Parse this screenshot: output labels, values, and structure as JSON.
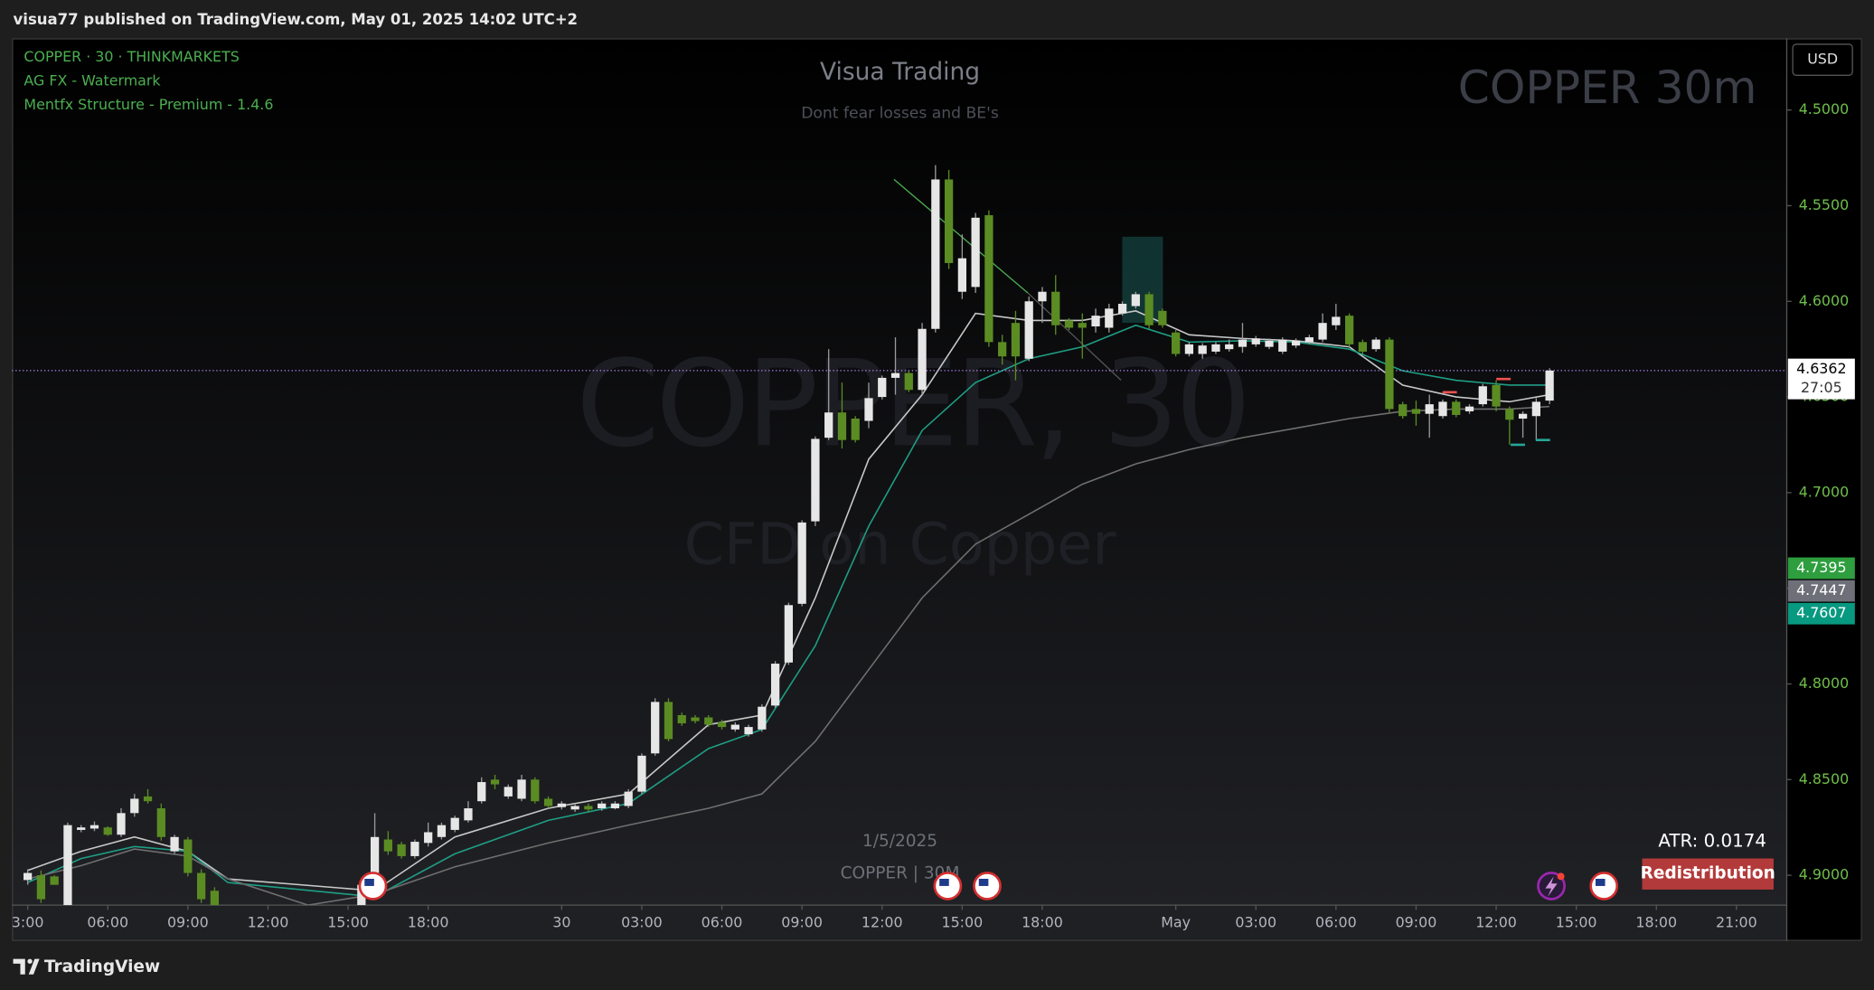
{
  "header": {
    "publish_note": "visua77 published on TradingView.com, May 01, 2025 14:02 UTC+2"
  },
  "chart_data": {
    "type": "candlestick",
    "title": "COPPER · 30 · THINKMARKETS",
    "indicator_labels": [
      "AG FX - Watermark",
      "Mentfx Structure - Premium - 1.4.6"
    ],
    "watermark": {
      "title": "Visua Trading",
      "subtitle": "Dont fear losses and BE's",
      "symbol": "COPPER 30m",
      "background_symbol": "COPPER, 30",
      "background_description": "CFD on Copper",
      "date": "1/5/2025",
      "footer": "COPPER | 30M"
    },
    "x": [
      1,
      2,
      3,
      4,
      5,
      6,
      7,
      8,
      9,
      10,
      11,
      12,
      13,
      14,
      15,
      26,
      27,
      28,
      29,
      30,
      31,
      32,
      33,
      34,
      35,
      36,
      37,
      38,
      39,
      40,
      41,
      42,
      43,
      44,
      45,
      46,
      47,
      48,
      49,
      50,
      51,
      52,
      53,
      54,
      55,
      56,
      57,
      58,
      59,
      60,
      61,
      62,
      63,
      64,
      65,
      66,
      67,
      68,
      69,
      70,
      71,
      72,
      73,
      74,
      75,
      76,
      77,
      78,
      79,
      80,
      81,
      82,
      83,
      84,
      85,
      86,
      87,
      88,
      89,
      90,
      91,
      92,
      93,
      94,
      95,
      96,
      97,
      98,
      99,
      100,
      101,
      102,
      103,
      104,
      105,
      106,
      107,
      108,
      109,
      110,
      111,
      112,
      113,
      114,
      115
    ],
    "open": [
      4.9025,
      4.9,
      4.9006,
      4.9156,
      4.8763,
      4.8756,
      4.875,
      4.8788,
      4.8675,
      4.8588,
      4.865,
      4.8875,
      4.8813,
      4.8988,
      4.9081,
      4.9156,
      4.905,
      4.8813,
      4.8838,
      4.89,
      4.8831,
      4.88,
      4.8763,
      4.8713,
      4.8613,
      4.85,
      4.8588,
      4.86,
      4.85,
      4.86,
      4.8644,
      4.8656,
      4.8638,
      4.865,
      4.865,
      4.8638,
      4.8563,
      4.8363,
      4.8094,
      4.8163,
      4.8175,
      4.8175,
      4.82,
      4.8238,
      4.8263,
      4.8238,
      4.8113,
      4.7888,
      4.7581,
      4.715,
      4.6713,
      4.6581,
      4.6613,
      4.6625,
      4.65,
      4.64,
      4.6375,
      4.6463,
      4.6144,
      4.5363,
      4.595,
      4.5925,
      4.555,
      4.6213,
      4.6113,
      4.63,
      4.6,
      4.595,
      4.61,
      4.6113,
      4.6131,
      4.6138,
      4.6063,
      4.6025,
      4.5963,
      4.605,
      4.6163,
      4.6275,
      4.6275,
      4.6263,
      4.625,
      4.6238,
      4.6225,
      4.6238,
      4.6263,
      4.6231,
      4.6213,
      4.62,
      4.6125,
      4.6075,
      4.6213,
      4.625,
      4.62,
      4.6538,
      4.6563,
      4.6588,
      4.66,
      4.6525,
      4.6575,
      4.6538,
      4.6438,
      4.6563,
      4.6613,
      4.66,
      4.6519
    ],
    "high": [
      4.905,
      4.9144,
      4.905,
      4.9156,
      4.8775,
      4.8769,
      4.8794,
      4.88,
      4.8694,
      4.8625,
      4.8819,
      4.8888,
      4.9006,
      4.9144,
      4.9156,
      4.9156,
      4.9081,
      4.8894,
      4.8913,
      4.8913,
      4.885,
      4.8813,
      4.8775,
      4.8725,
      4.8625,
      4.855,
      4.86,
      4.8613,
      4.8625,
      4.865,
      4.8656,
      4.8669,
      4.8669,
      4.8663,
      4.8656,
      4.865,
      4.8575,
      4.8375,
      4.83,
      4.8219,
      4.8206,
      4.8225,
      4.8238,
      4.825,
      4.8275,
      4.825,
      4.8125,
      4.79,
      4.7594,
      4.7175,
      4.6725,
      4.6769,
      4.6738,
      4.6663,
      4.6513,
      4.6488,
      4.6475,
      4.6488,
      4.6163,
      4.5831,
      4.5988,
      4.5956,
      4.6238,
      4.6331,
      4.6413,
      4.6313,
      4.6113,
      4.6175,
      4.615,
      4.63,
      4.6163,
      4.6163,
      4.6075,
      4.6038,
      4.6144,
      4.6138,
      4.6288,
      4.6288,
      4.63,
      4.6275,
      4.6263,
      4.6269,
      4.6238,
      4.625,
      4.6275,
      4.6244,
      4.6225,
      4.6213,
      4.615,
      4.6238,
      4.6275,
      4.6263,
      4.6581,
      4.6613,
      4.665,
      4.6713,
      4.6613,
      4.6606,
      4.6588,
      4.655,
      4.6575,
      4.675,
      4.6713,
      4.6725,
      4.6538
    ],
    "low": [
      4.8969,
      4.8975,
      4.9,
      4.8725,
      4.8738,
      4.8719,
      4.8744,
      4.865,
      4.8575,
      4.855,
      4.8625,
      4.8788,
      4.88,
      4.8969,
      4.9063,
      4.9031,
      4.8675,
      4.8769,
      4.8825,
      4.8813,
      4.8725,
      4.8725,
      4.8688,
      4.8613,
      4.8488,
      4.8475,
      4.8525,
      4.8475,
      4.8488,
      4.8588,
      4.8613,
      4.8625,
      4.8625,
      4.8613,
      4.8613,
      4.855,
      4.8363,
      4.8075,
      4.8075,
      4.815,
      4.8163,
      4.8163,
      4.8188,
      4.82,
      4.8213,
      4.8106,
      4.7881,
      4.7575,
      4.7144,
      4.6706,
      4.625,
      4.6425,
      4.66,
      4.6425,
      4.6388,
      4.6188,
      4.6363,
      4.6113,
      4.5288,
      4.5313,
      4.565,
      4.5538,
      4.5525,
      4.6175,
      4.605,
      4.5975,
      4.5925,
      4.5863,
      4.6088,
      4.6063,
      4.6038,
      4.6013,
      4.6,
      4.595,
      4.595,
      4.6038,
      4.615,
      4.6213,
      4.6219,
      4.6213,
      4.62,
      4.6113,
      4.6181,
      4.6194,
      4.6188,
      4.6194,
      4.6175,
      4.6063,
      4.6013,
      4.6063,
      4.62,
      4.6188,
      4.6188,
      4.6525,
      4.6519,
      4.6488,
      4.6513,
      4.6513,
      4.6538,
      4.6431,
      4.6413,
      4.655,
      4.6575,
      4.6506,
      4.635
    ],
    "close": [
      4.8988,
      4.9125,
      4.905,
      4.8738,
      4.875,
      4.8738,
      4.8788,
      4.8675,
      4.86,
      4.8613,
      4.88,
      4.88,
      4.8988,
      4.9125,
      4.9156,
      4.905,
      4.88,
      4.8875,
      4.89,
      4.8825,
      4.8775,
      4.8738,
      4.87,
      4.865,
      4.8513,
      4.8525,
      4.8538,
      4.85,
      4.8613,
      4.8638,
      4.8625,
      4.8638,
      4.8656,
      4.8625,
      4.8625,
      4.8563,
      4.8375,
      4.8094,
      4.8288,
      4.8206,
      4.8194,
      4.8213,
      4.8225,
      4.8213,
      4.8225,
      4.8119,
      4.7894,
      4.7588,
      4.7156,
      4.6719,
      4.6581,
      4.6725,
      4.6725,
      4.6506,
      4.64,
      4.6375,
      4.6463,
      4.6144,
      4.5363,
      4.58,
      4.5775,
      4.5563,
      4.6213,
      4.6288,
      4.6288,
      4.6,
      4.595,
      4.6125,
      4.6138,
      4.6138,
      4.6075,
      4.6038,
      4.6013,
      4.5963,
      4.6125,
      4.6125,
      4.6275,
      4.6225,
      4.6231,
      4.6225,
      4.6225,
      4.62,
      4.6194,
      4.6206,
      4.62,
      4.6206,
      4.6188,
      4.6113,
      4.6081,
      4.6225,
      4.6263,
      4.62,
      4.6563,
      4.66,
      4.6588,
      4.6538,
      4.6525,
      4.6594,
      4.655,
      4.6444,
      4.655,
      4.6619,
      4.6588,
      4.6525,
      4.6362
    ],
    "up_color": "#5b8c23",
    "down_color": "#e6e6e6",
    "lines": [
      {
        "color": "#c8c8c8",
        "x": [
          1,
          5,
          9,
          13,
          16,
          27,
          33,
          40,
          46,
          52,
          56,
          60,
          64,
          68,
          72,
          76,
          80,
          84,
          88,
          92,
          96,
          100,
          104,
          108,
          112,
          115
        ],
        "values": [
          4.8975,
          4.8875,
          4.88,
          4.8875,
          4.9019,
          4.9081,
          4.88,
          4.865,
          4.8575,
          4.8213,
          4.8163,
          4.755,
          4.6825,
          4.6488,
          4.6063,
          4.61,
          4.61,
          4.605,
          4.6175,
          4.6194,
          4.6206,
          4.6238,
          4.6438,
          4.65,
          4.6525,
          4.6488
        ]
      },
      {
        "color": "#1e9e85",
        "x": [
          1,
          5,
          9,
          13,
          16,
          27,
          33,
          40,
          46,
          52,
          56,
          60,
          64,
          68,
          72,
          76,
          80,
          84,
          88,
          92,
          96,
          100,
          104,
          108,
          112,
          115
        ],
        "values": [
          4.9038,
          4.8913,
          4.885,
          4.8875,
          4.9038,
          4.9113,
          4.8888,
          4.8713,
          4.8625,
          4.8338,
          4.8238,
          4.78,
          4.7175,
          4.6675,
          4.6425,
          4.63,
          4.6238,
          4.6125,
          4.6213,
          4.6206,
          4.6213,
          4.625,
          4.6363,
          4.6413,
          4.6438,
          4.6438
        ]
      },
      {
        "color": "#6f6f6f",
        "x": [
          1,
          5,
          9,
          13,
          16,
          22,
          27,
          33,
          40,
          46,
          52,
          56,
          60,
          64,
          68,
          72,
          76,
          80,
          84,
          88,
          92,
          96,
          100,
          104,
          108,
          112,
          115
        ],
        "values": [
          4.9019,
          4.895,
          4.8863,
          4.89,
          4.9019,
          4.9156,
          4.91,
          4.8956,
          4.8831,
          4.8738,
          4.865,
          4.8575,
          4.83,
          4.7925,
          4.755,
          4.7269,
          4.7113,
          4.6956,
          4.685,
          4.6775,
          4.6713,
          4.6663,
          4.6613,
          4.6575,
          4.6563,
          4.6563,
          4.655
        ]
      }
    ],
    "xlim": [
      0,
      133
    ],
    "xticks": [
      {
        "value": 1,
        "label": "3:00"
      },
      {
        "value": 7,
        "label": "06:00"
      },
      {
        "value": 13,
        "label": "09:00"
      },
      {
        "value": 19,
        "label": "12:00"
      },
      {
        "value": 25,
        "label": "15:00"
      },
      {
        "value": 31,
        "label": "18:00"
      },
      {
        "value": 41,
        "label": "30"
      },
      {
        "value": 47,
        "label": "03:00"
      },
      {
        "value": 53,
        "label": "06:00"
      },
      {
        "value": 59,
        "label": "09:00"
      },
      {
        "value": 65,
        "label": "12:00"
      },
      {
        "value": 71,
        "label": "15:00"
      },
      {
        "value": 77,
        "label": "18:00"
      },
      {
        "value": 87,
        "label": "May"
      },
      {
        "value": 93,
        "label": "03:00"
      },
      {
        "value": 99,
        "label": "06:00"
      },
      {
        "value": 105,
        "label": "09:00"
      },
      {
        "value": 111,
        "label": "12:00"
      },
      {
        "value": 117,
        "label": "15:00"
      },
      {
        "value": 123,
        "label": "18:00"
      },
      {
        "value": 129,
        "label": "21:00"
      }
    ],
    "ylim": [
      4.9156,
      4.4625
    ],
    "yticks": [
      {
        "value": 4.5,
        "label": "4.5000"
      },
      {
        "value": 4.55,
        "label": "4.5500"
      },
      {
        "value": 4.6,
        "label": "4.6000"
      },
      {
        "value": 4.65,
        "label": "4.6500"
      },
      {
        "value": 4.7,
        "label": "4.7000"
      },
      {
        "value": 4.75,
        "label": "4.7500"
      },
      {
        "value": 4.8,
        "label": "4.8000"
      },
      {
        "value": 4.85,
        "label": "4.8500"
      },
      {
        "value": 4.9,
        "label": "4.9000"
      }
    ],
    "currency": "USD",
    "last_price": 4.6362,
    "last_price_color": "#b388ff",
    "countdown": "27:05",
    "price_labels": [
      {
        "value": 4.7395,
        "color": "#2e9e3e"
      },
      {
        "value": 4.7447,
        "color": "#6e7079"
      },
      {
        "value": 4.7607,
        "color": "#089981"
      }
    ],
    "atr": "ATR: 0.0174",
    "status_label": "Redistribution"
  },
  "footer": {
    "brand": "TradingView"
  }
}
